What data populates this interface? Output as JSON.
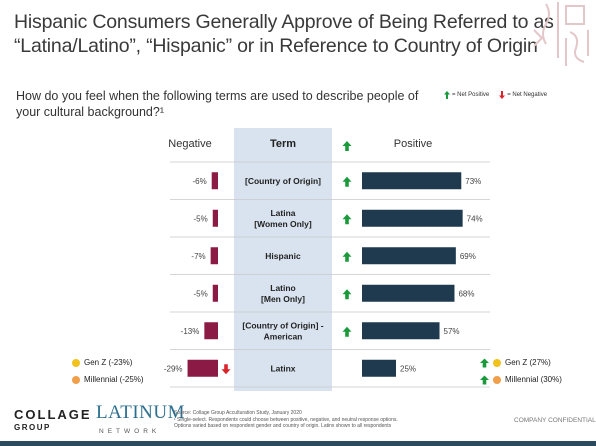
{
  "title": "Hispanic Consumers Generally Approve of Being Referred to as “Latina/Latino”, “Hispanic” or in Reference to Country of Origin",
  "question": "How do you feel when the following terms are used to describe people of your cultural background?¹",
  "legend_top": {
    "positive": "= Net Positive",
    "negative": "= Net Negative"
  },
  "colors": {
    "negative_bar": "#8b1a45",
    "positive_bar": "#1f3a4f",
    "term_bg": "#d9e3ef",
    "up_arrow": "#1a9a3a",
    "down_arrow": "#d9242a",
    "gen_z": "#f2c21c",
    "millennial": "#f0a04b"
  },
  "chart_data": {
    "type": "bar",
    "headers": {
      "negative": "Negative",
      "term": "Term",
      "positive": "Positive"
    },
    "categories": [
      "[Country of Origin]",
      "Latina [Women Only]",
      "Hispanic",
      "Latino [Men Only]",
      "[Country of Origin] - American",
      "Latinx"
    ],
    "category_lines": [
      [
        "[Country of Origin]"
      ],
      [
        "Latina",
        "[Women Only]"
      ],
      [
        "Hispanic"
      ],
      [
        "Latino",
        "[Men Only]"
      ],
      [
        "[Country of Origin] -",
        "American"
      ],
      [
        "Latinx"
      ]
    ],
    "series": [
      {
        "name": "Negative",
        "values": [
          -6,
          -5,
          -7,
          -5,
          -13,
          -29
        ],
        "labels": [
          "-6%",
          "-5%",
          "-7%",
          "-5%",
          "-13%",
          "-29%"
        ]
      },
      {
        "name": "Positive",
        "values": [
          73,
          74,
          69,
          68,
          57,
          25
        ],
        "labels": [
          "73%",
          "74%",
          "69%",
          "68%",
          "57%",
          "25%"
        ]
      }
    ],
    "net": [
      "positive",
      "positive",
      "positive",
      "positive",
      "positive",
      "negative"
    ]
  },
  "side_legend_left": [
    {
      "label": "Gen Z (-23%)",
      "color": "gen_z"
    },
    {
      "label": "Millennial (-25%)",
      "color": "millennial"
    }
  ],
  "side_legend_right": [
    {
      "label": "Gen Z (27%)",
      "color": "gen_z"
    },
    {
      "label": "Millennial (30%)",
      "color": "millennial"
    }
  ],
  "footer": {
    "collage": "COLLAGE",
    "collage_sub": "GROUP",
    "latinum": "LATINUM",
    "network": "NETWORK",
    "source": "Source: Collage Group Acculturation Study, January 2020",
    "note1": "¹ Single-select. Respondents could choose between positive, negative, and neutral response options.",
    "note2": "Options varied based on respondent gender and country of origin. Latinx shown to all respondents",
    "confidential": "COMPANY CONFIDENTIAL"
  }
}
